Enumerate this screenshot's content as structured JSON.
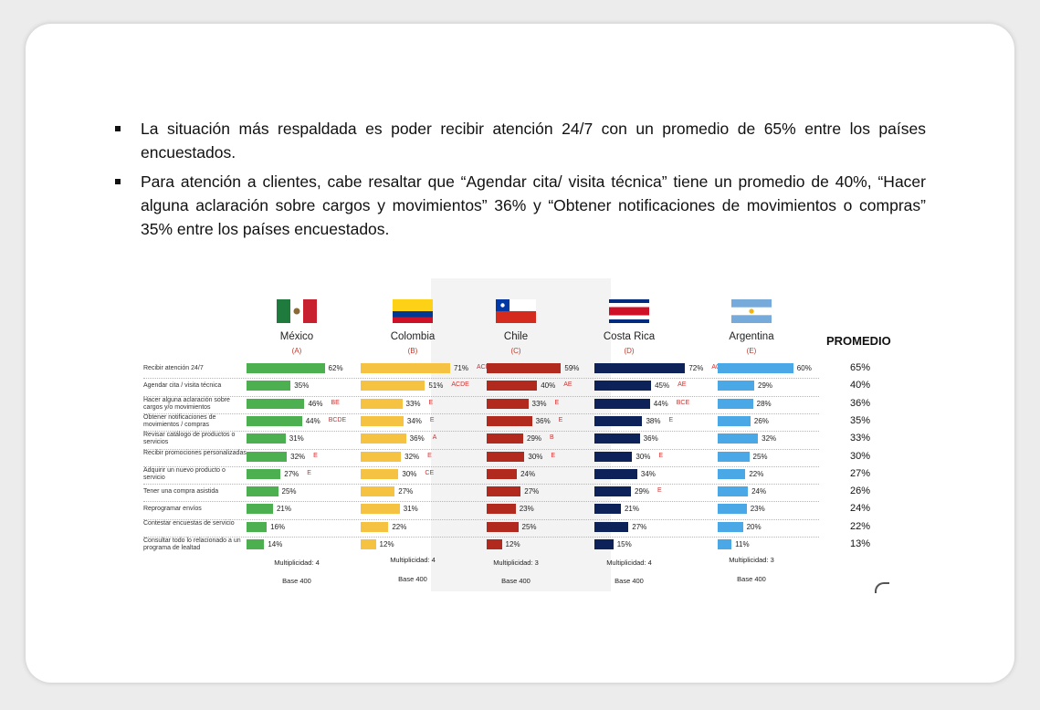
{
  "bullets": [
    "La situación más respaldada es poder recibir atención 24/7 con un promedio de 65% entre los países encuestados.",
    "Para atención a clientes, cabe resaltar que “Agendar cita/ visita técnica” tiene un promedio de 40%, “Hacer alguna aclaración sobre cargos y movimientos” 36% y “Obtener notificaciones de movimientos o compras”  35% entre los países encuestados."
  ],
  "chart_data": {
    "type": "bar",
    "orientation": "horizontal",
    "average_header": "PROMEDIO",
    "categories": [
      "Recibir atención 24/7",
      "Agendar cita / visita técnica",
      "Hacer alguna aclaración sobre cargos y/o movimientos",
      "Obtener notificaciones de movimientos / compras",
      "Revisar catálogo de productos o servicios",
      "Recibir promociones personalizadas",
      "Adquirir un nuevo producto o servicio",
      "Tener una compra asistida",
      "Reprogramar envíos",
      "Contestar encuestas de servicio",
      "Consultar todo lo relacionado a un programa de lealtad"
    ],
    "series": [
      {
        "name": "México",
        "letter": "(A)",
        "color": "#4caf50",
        "flag": "mexico-flag",
        "values": [
          62,
          35,
          46,
          44,
          31,
          32,
          27,
          25,
          21,
          16,
          14
        ],
        "sig": [
          "",
          "",
          "BE",
          "BCDE",
          "",
          "E",
          "E",
          "",
          "",
          "",
          ""
        ],
        "multiplicity": "Multiplicidad: 4",
        "base": "Base 400"
      },
      {
        "name": "Colombia",
        "letter": "(B)",
        "color": "#f5c242",
        "flag": "colombia-flag",
        "values": [
          71,
          51,
          33,
          34,
          36,
          32,
          30,
          27,
          31,
          22,
          12
        ],
        "sig": [
          "ACE",
          "ACDE",
          "E",
          "E",
          "A",
          "E",
          "CE",
          "",
          "",
          "",
          ""
        ],
        "multiplicity": "Multiplicidad: 4",
        "base": "Base 400"
      },
      {
        "name": "Chile",
        "letter": "(C)",
        "color": "#b22a1e",
        "flag": "chile-flag",
        "values": [
          59,
          40,
          33,
          36,
          29,
          30,
          24,
          27,
          23,
          25,
          12
        ],
        "sig": [
          "",
          "AE",
          "E",
          "E",
          "B",
          "E",
          "",
          "",
          "",
          "",
          ""
        ],
        "multiplicity": "Multiplicidad: 3",
        "base": "Base 400"
      },
      {
        "name": "Costa Rica",
        "letter": "(D)",
        "color": "#0d2259",
        "flag": "costa-rica-flag",
        "values": [
          72,
          45,
          44,
          38,
          36,
          30,
          34,
          29,
          21,
          27,
          15
        ],
        "sig": [
          "ACE",
          "AE",
          "BCE",
          "E",
          "",
          "E",
          "",
          "E",
          "",
          "",
          ""
        ],
        "multiplicity": "Multiplicidad: 4",
        "base": "Base 400"
      },
      {
        "name": "Argentina",
        "letter": "(E)",
        "color": "#4aa8e6",
        "flag": "argentina-flag",
        "values": [
          60,
          29,
          28,
          26,
          32,
          25,
          22,
          24,
          23,
          20,
          11
        ],
        "sig": [
          "",
          "",
          "",
          "",
          "",
          "",
          "",
          "",
          "",
          "",
          ""
        ],
        "multiplicity": "Multiplicidad: 3",
        "base": "Base 400"
      }
    ],
    "averages": [
      65,
      40,
      36,
      35,
      33,
      30,
      27,
      26,
      24,
      22,
      13
    ],
    "value_format": "percent"
  }
}
